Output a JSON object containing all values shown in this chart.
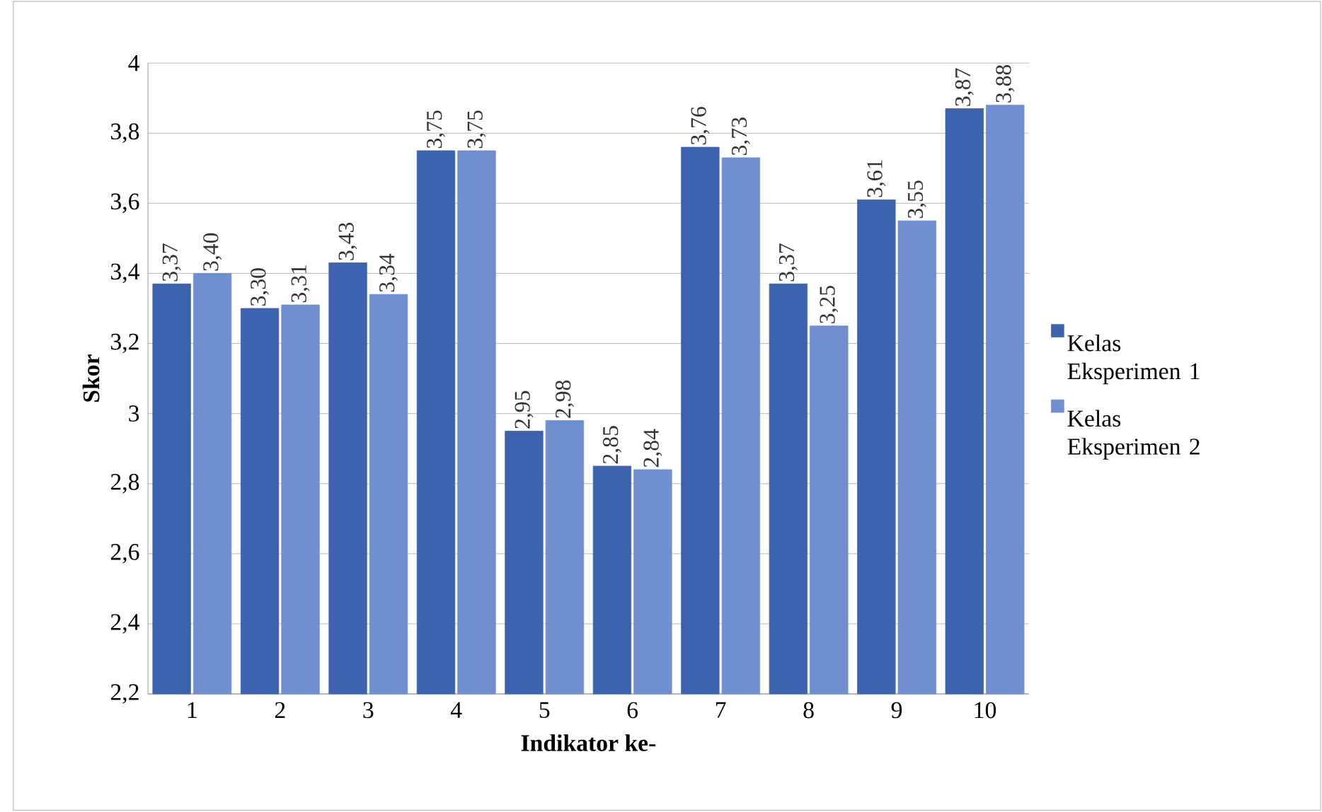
{
  "chart_data": {
    "type": "bar",
    "xlabel": "Indikator ke-",
    "ylabel": "Skor",
    "categories": [
      "1",
      "2",
      "3",
      "4",
      "5",
      "6",
      "7",
      "8",
      "9",
      "10"
    ],
    "series": [
      {
        "name": "Kelas Eksperimen 1",
        "color": "#3c64ae",
        "values": [
          3.37,
          3.3,
          3.43,
          3.75,
          2.95,
          2.85,
          3.76,
          3.37,
          3.61,
          3.87
        ],
        "value_labels": [
          "3,37",
          "3,30",
          "3,43",
          "3,75",
          "2,95",
          "2,85",
          "3,76",
          "3,37",
          "3,61",
          "3,87"
        ]
      },
      {
        "name": "Kelas Eksperimen 2",
        "color": "#6f8fd0",
        "values": [
          3.4,
          3.31,
          3.34,
          3.75,
          2.98,
          2.84,
          3.73,
          3.25,
          3.55,
          3.88
        ],
        "value_labels": [
          "3,40",
          "3,31",
          "3,34",
          "3,75",
          "2,98",
          "2,84",
          "3,73",
          "3,25",
          "3,55",
          "3,88"
        ]
      }
    ],
    "ylim": [
      2.2,
      4
    ],
    "yticks": [
      {
        "value": 2.2,
        "label": "2,2"
      },
      {
        "value": 2.4,
        "label": "2,4"
      },
      {
        "value": 2.6,
        "label": "2,6"
      },
      {
        "value": 2.8,
        "label": "2,8"
      },
      {
        "value": 3,
        "label": "3"
      },
      {
        "value": 3.2,
        "label": "3,2"
      },
      {
        "value": 3.4,
        "label": "3,4"
      },
      {
        "value": 3.6,
        "label": "3,6"
      },
      {
        "value": 3.8,
        "label": "3,8"
      },
      {
        "value": 4,
        "label": "4"
      }
    ],
    "grid": "y",
    "legend": "right"
  }
}
